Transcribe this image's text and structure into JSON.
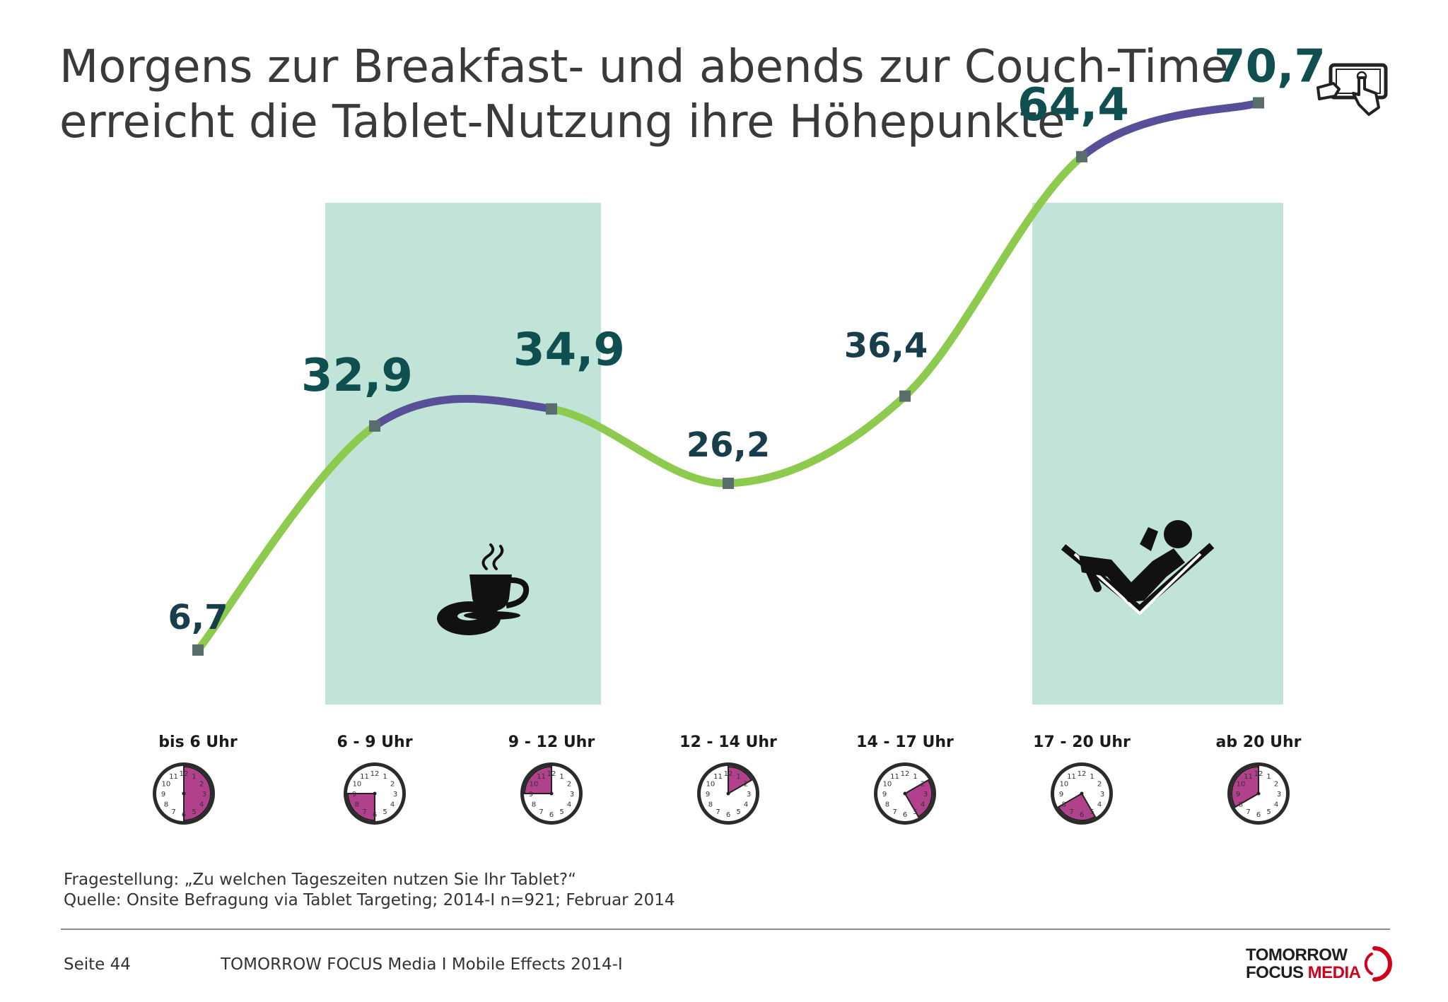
{
  "header": {
    "title_line1": "Morgens zur Breakfast- und abends zur Couch-Time",
    "title_line2": "erreicht die Tablet-Nutzung ihre Höhepunkte",
    "icon": "tablet-touch-icon"
  },
  "chart_data": {
    "type": "line",
    "categories": [
      "bis 6 Uhr",
      "6 - 9 Uhr",
      "9 - 12 Uhr",
      "12 - 14 Uhr",
      "14 - 17 Uhr",
      "17 - 20 Uhr",
      "ab 20 Uhr"
    ],
    "values": [
      6.7,
      32.9,
      34.9,
      26.2,
      36.4,
      64.4,
      70.7
    ],
    "value_labels": [
      "6,7",
      "32,9",
      "34,9",
      "26,2",
      "36,4",
      "64,4",
      "70,7"
    ],
    "highlight_periods": [
      {
        "from": "6 - 9 Uhr",
        "to": "9 - 12 Uhr",
        "icon": "coffee-donut-icon"
      },
      {
        "from": "17 - 20 Uhr",
        "to": "ab 20 Uhr",
        "icon": "reclining-reader-icon"
      }
    ],
    "clock_ranges": [
      [
        0,
        6
      ],
      [
        6,
        9
      ],
      [
        9,
        12
      ],
      [
        12,
        14
      ],
      [
        14,
        17
      ],
      [
        17,
        20
      ],
      [
        20,
        24
      ]
    ],
    "ylim": [
      0,
      80
    ],
    "grid": false,
    "legend": "none",
    "colors": {
      "line": "#8dcb4f",
      "line_highlight": "#574f99",
      "highlight_band": "#c2e3d8",
      "label_strong": "#0f4f4f",
      "label": "#173e4a",
      "marker": "#5a6d6d",
      "clock_fill": "#b1418c"
    }
  },
  "notes": {
    "question": "Fragestellung: „Zu welchen Tageszeiten nutzen Sie Ihr Tablet?“",
    "source": "Quelle: Onsite Befragung via Tablet Targeting; 2014-I n=921; Februar 2014"
  },
  "footer": {
    "page": "Seite 44",
    "text": "TOMORROW FOCUS Media  I  Mobile Effects 2014-I",
    "logo_line1": "TOMORROW",
    "logo_line2a": "FOCUS ",
    "logo_line2b": "MEDIA"
  }
}
